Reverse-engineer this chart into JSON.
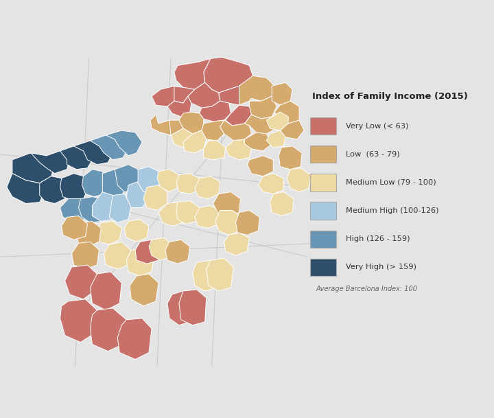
{
  "legend_title": "Index of Family Income (2015)",
  "legend_entries": [
    {
      "label": "Very Low (< 63)",
      "color": "#C8706A"
    },
    {
      "label": "Low  (63 - 79)",
      "color": "#D4AA6E"
    },
    {
      "label": "Medium Low (79 - 100)",
      "color": "#EDD9A3"
    },
    {
      "label": "Medium High (100-126)",
      "color": "#A8C8E0"
    },
    {
      "label": "High (126 - 159)",
      "color": "#6A96B5"
    },
    {
      "label": "Very High (> 159)",
      "color": "#2E4F6B"
    }
  ],
  "note": "Average Barcelona Index: 100",
  "background_color": "#E4E4E4",
  "map_bg": "#D8D8D8",
  "border_color": "white",
  "figsize": [
    7.2,
    6.09
  ],
  "dpi": 100
}
